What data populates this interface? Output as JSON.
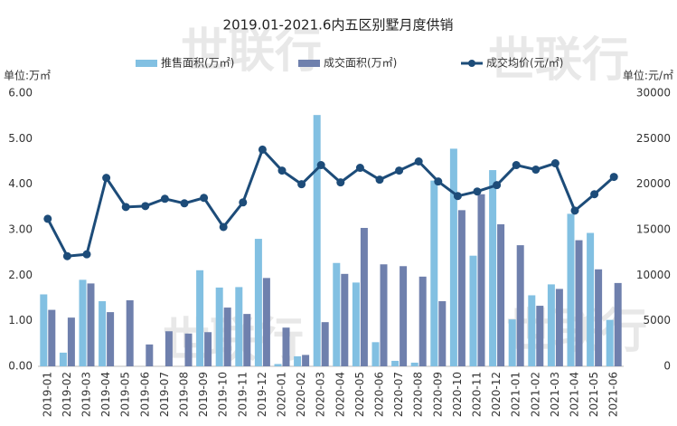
{
  "chart_data": {
    "type": "bar-line",
    "title": "2019.01-2021.6内五区别墅月度供销",
    "watermark": "世联行",
    "y_unit_label": "单位:万㎡",
    "y2_unit_label": "单位:元/㎡",
    "categories": [
      "2019-01",
      "2019-02",
      "2019-03",
      "2019-04",
      "2019-05",
      "2019-06",
      "2019-07",
      "2019-08",
      "2019-09",
      "2019-10",
      "2019-11",
      "2019-12",
      "2020-01",
      "2020-02",
      "2020-03",
      "2020-04",
      "2020-05",
      "2020-06",
      "2020-07",
      "2020-08",
      "2020-09",
      "2020-10",
      "2020-11",
      "2020-12",
      "2021-01",
      "2021-02",
      "2021-03",
      "2021-04",
      "2021-05",
      "2021-06"
    ],
    "series": [
      {
        "name": "推售面积(万㎡)",
        "color": "#82c0e2",
        "type": "bar",
        "values": [
          1.58,
          0.3,
          1.9,
          1.43,
          0,
          0,
          0,
          0,
          2.11,
          1.73,
          1.74,
          2.8,
          0.05,
          0.22,
          5.52,
          2.27,
          1.84,
          0.53,
          0.12,
          0.08,
          4.08,
          4.78,
          2.43,
          4.31,
          1.03,
          1.56,
          1.8,
          3.35,
          2.93,
          1.02
        ]
      },
      {
        "name": "成交面积(万㎡)",
        "color": "#6f80ad",
        "type": "bar",
        "values": [
          1.24,
          1.07,
          1.82,
          1.19,
          1.45,
          0.48,
          0.77,
          0.72,
          0.75,
          1.29,
          1.15,
          1.94,
          0.85,
          0.25,
          0.97,
          2.03,
          3.04,
          2.24,
          2.2,
          1.97,
          1.43,
          3.43,
          3.78,
          3.12,
          2.66,
          1.33,
          1.7,
          2.77,
          2.13,
          1.83
        ]
      },
      {
        "name": "成交均价(元/㎡)",
        "color": "#1d4c79",
        "type": "line",
        "axis": "y2",
        "values": [
          16200,
          12100,
          12300,
          20700,
          17500,
          17600,
          18400,
          17900,
          18500,
          15300,
          18000,
          23800,
          21500,
          20000,
          22100,
          20200,
          21800,
          20500,
          21500,
          22500,
          20300,
          18700,
          19200,
          19900,
          22100,
          21600,
          22300,
          17100,
          18900,
          20800
        ]
      }
    ],
    "ylim": [
      0,
      6
    ],
    "yticks": [
      {
        "value": 0,
        "label": "0.00"
      },
      {
        "value": 1,
        "label": "1.00"
      },
      {
        "value": 2,
        "label": "2.00"
      },
      {
        "value": 3,
        "label": "3.00"
      },
      {
        "value": 4,
        "label": "4.00"
      },
      {
        "value": 5,
        "label": "5.00"
      },
      {
        "value": 6,
        "label": "6.00"
      }
    ],
    "y2lim": [
      0,
      30000
    ],
    "y2ticks": [
      0,
      5000,
      10000,
      15000,
      20000,
      25000,
      30000
    ]
  }
}
